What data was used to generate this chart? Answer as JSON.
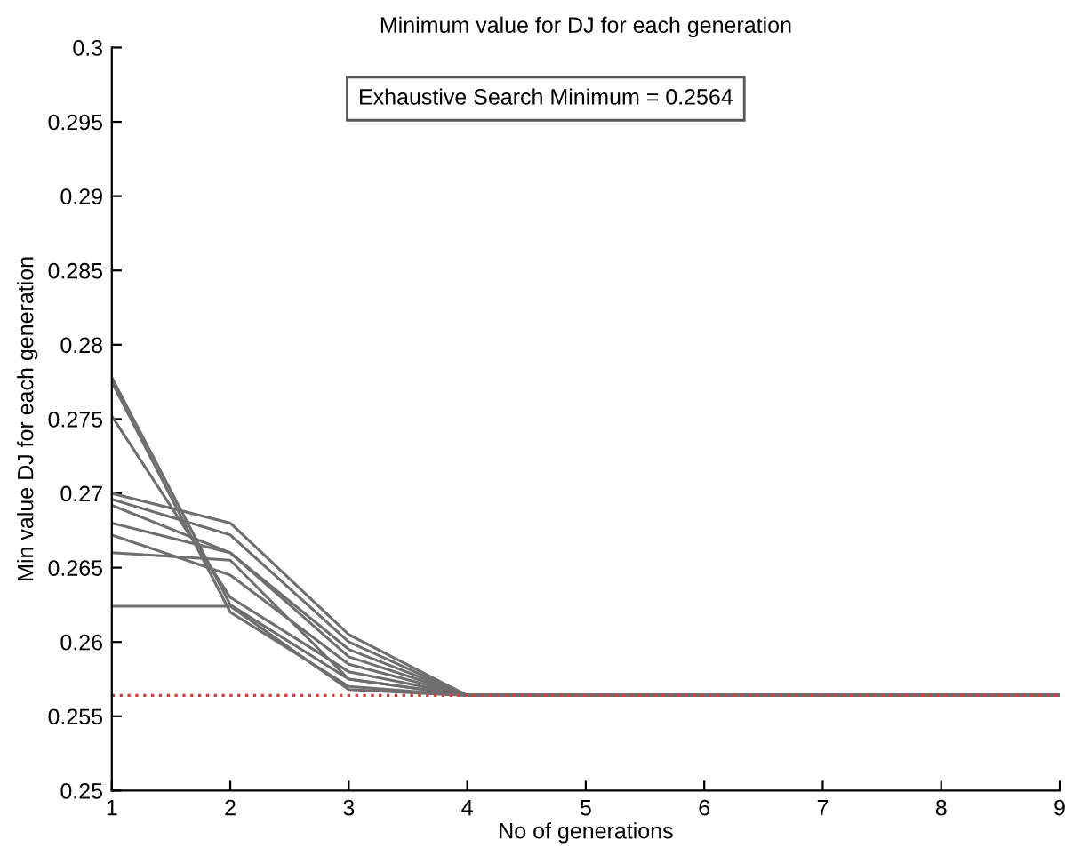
{
  "chart_data": {
    "type": "line",
    "title": "Minimum value for DJ for each generation",
    "xlabel": "No of generations",
    "ylabel": "Min value DJ for each generation",
    "x": [
      1,
      2,
      3,
      4,
      5,
      6,
      7,
      8,
      9
    ],
    "series": [
      {
        "color": "#6e6e6e",
        "values": [
          0.2778,
          0.2625,
          0.2575,
          0.2564,
          0.2564,
          0.2564,
          0.2564,
          0.2564,
          0.2564
        ]
      },
      {
        "color": "#6e6e6e",
        "values": [
          0.2775,
          0.262,
          0.257,
          0.2564,
          0.2564,
          0.2564,
          0.2564,
          0.2564,
          0.2564
        ]
      },
      {
        "color": "#6e6e6e",
        "values": [
          0.2752,
          0.263,
          0.258,
          0.2564,
          0.2564,
          0.2564,
          0.2564,
          0.2564,
          0.2564
        ]
      },
      {
        "color": "#6e6e6e",
        "values": [
          0.27,
          0.268,
          0.2605,
          0.2564,
          0.2564,
          0.2564,
          0.2564,
          0.2564,
          0.2564
        ]
      },
      {
        "color": "#6e6e6e",
        "values": [
          0.2696,
          0.2672,
          0.26,
          0.2564,
          0.2564,
          0.2564,
          0.2564,
          0.2564,
          0.2564
        ]
      },
      {
        "color": "#6e6e6e",
        "values": [
          0.2692,
          0.266,
          0.2595,
          0.2564,
          0.2564,
          0.2564,
          0.2564,
          0.2564,
          0.2564
        ]
      },
      {
        "color": "#6e6e6e",
        "values": [
          0.268,
          0.266,
          0.259,
          0.2564,
          0.2564,
          0.2564,
          0.2564,
          0.2564,
          0.2564
        ]
      },
      {
        "color": "#6e6e6e",
        "values": [
          0.2672,
          0.2645,
          0.2585,
          0.2564,
          0.2564,
          0.2564,
          0.2564,
          0.2564,
          0.2564
        ]
      },
      {
        "color": "#6e6e6e",
        "values": [
          0.266,
          0.2655,
          0.2575,
          0.2564,
          0.2564,
          0.2564,
          0.2564,
          0.2564,
          0.2564
        ]
      },
      {
        "color": "#6e6e6e",
        "values": [
          0.2624,
          0.2624,
          0.2568,
          0.2564,
          0.2564,
          0.2564,
          0.2564,
          0.2564,
          0.2564
        ]
      }
    ],
    "ref_lines": [
      {
        "axis": "y",
        "value": 0.2564,
        "color": "#d04040",
        "line_style": "dotted"
      }
    ],
    "annotations": [
      "Exhaustive Search Minimum = 0.2564"
    ],
    "xlim": [
      1,
      9
    ],
    "xticks": [
      1,
      2,
      3,
      4,
      5,
      6,
      7,
      8,
      9
    ],
    "ylim": [
      0.25,
      0.3
    ],
    "yticks": [
      0.25,
      0.255,
      0.26,
      0.265,
      0.27,
      0.275,
      0.28,
      0.285,
      0.29,
      0.295,
      0.3
    ],
    "grid": false,
    "legend": false,
    "marker": "none",
    "line_style": "solid"
  }
}
